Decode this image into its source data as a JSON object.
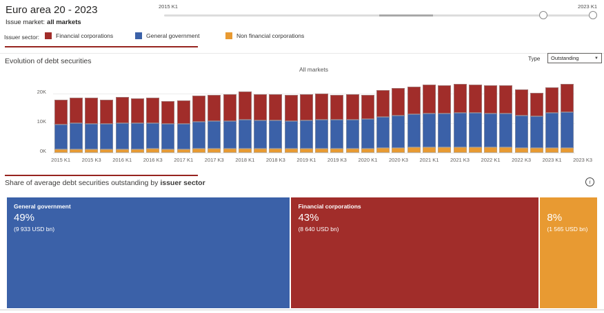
{
  "header": {
    "title": "Euro area 20 - 2023",
    "issue_market_label": "Issue market:",
    "issue_market_value": "all markets"
  },
  "slider": {
    "start_label": "2015 K1",
    "end_label": "2023 K1"
  },
  "legend": {
    "label": "Issuer sector:",
    "items": [
      {
        "label": "Financial corporations",
        "color": "#a12d2a"
      },
      {
        "label": "General government",
        "color": "#3b61a8"
      },
      {
        "label": "Non financial corporations",
        "color": "#e89a32"
      }
    ]
  },
  "sections": {
    "evolution_title": "Evolution of debt securities",
    "type_label": "Type",
    "type_value": "Outstanding",
    "share_title_prefix": "Share of average debt securities outstanding by ",
    "share_title_bold": "issuer sector"
  },
  "icons": {
    "dropdown_caret": "▼",
    "info": "i"
  },
  "colors": {
    "divider": "#96231e",
    "red": "#a12d2a",
    "blue": "#3b61a8",
    "orange": "#e89a32"
  },
  "chart_data": [
    {
      "type": "bar",
      "stacked": true,
      "title": "All markets",
      "xlabel": "",
      "ylabel": "",
      "ylim": [
        0,
        25
      ],
      "y_ticks": [
        "0K",
        "10K",
        "20K"
      ],
      "grid": true,
      "x": [
        "2015 K1",
        "2015 K2",
        "2015 K3",
        "2015 K4",
        "2016 K1",
        "2016 K2",
        "2016 K3",
        "2016 K4",
        "2017 K1",
        "2017 K2",
        "2017 K3",
        "2017 K4",
        "2018 K1",
        "2018 K2",
        "2018 K3",
        "2018 K4",
        "2019 K1",
        "2019 K2",
        "2019 K3",
        "2019 K4",
        "2020 K1",
        "2020 K2",
        "2020 K3",
        "2020 K4",
        "2021 K1",
        "2021 K2",
        "2021 K3",
        "2021 K4",
        "2022 K1",
        "2022 K2",
        "2022 K3",
        "2022 K4",
        "2023 K1",
        "2023 K2"
      ],
      "x_tick_labels": [
        "2015 K1",
        "2015 K3",
        "2016 K1",
        "2016 K3",
        "2017 K1",
        "2017 K3",
        "2018 K1",
        "2018 K3",
        "2019 K1",
        "2019 K3",
        "2020 K1",
        "2020 K3",
        "2021 K1",
        "2021 K3",
        "2022 K1",
        "2022 K3",
        "2023 K1",
        "2023 K3"
      ],
      "series": [
        {
          "name": "Non financial corporations",
          "color": "#e89a32",
          "values": [
            1.2,
            1.2,
            1.2,
            1.2,
            1.2,
            1.2,
            1.3,
            1.2,
            1.2,
            1.3,
            1.4,
            1.4,
            1.4,
            1.4,
            1.4,
            1.3,
            1.4,
            1.5,
            1.5,
            1.5,
            1.5,
            1.7,
            1.7,
            1.8,
            1.8,
            1.8,
            1.8,
            1.8,
            1.8,
            1.8,
            1.6,
            1.6,
            1.6,
            1.7
          ]
        },
        {
          "name": "General government",
          "color": "#3b61a8",
          "values": [
            8.4,
            8.7,
            8.6,
            8.5,
            8.8,
            8.8,
            8.8,
            8.5,
            8.6,
            9.2,
            9.2,
            9.3,
            9.7,
            9.5,
            9.5,
            9.5,
            9.5,
            9.6,
            9.6,
            9.7,
            9.8,
            10.5,
            10.8,
            11.2,
            11.5,
            11.5,
            11.7,
            11.6,
            11.5,
            11.4,
            10.9,
            10.8,
            11.8,
            12.0
          ]
        },
        {
          "name": "Financial corporations",
          "color": "#a12d2a",
          "values": [
            8.4,
            8.8,
            8.7,
            8.2,
            8.8,
            8.4,
            8.5,
            7.8,
            7.9,
            8.8,
            8.9,
            9.0,
            9.5,
            8.9,
            8.9,
            8.8,
            8.8,
            8.8,
            8.5,
            8.6,
            8.2,
            9.0,
            9.4,
            9.4,
            9.7,
            9.5,
            9.8,
            9.7,
            9.6,
            9.6,
            8.8,
            7.8,
            8.8,
            9.5
          ]
        }
      ]
    },
    {
      "type": "bar",
      "subtype": "100%-share",
      "title": "Share of average debt securities outstanding by issuer sector",
      "segments": [
        {
          "name": "General government",
          "pct": "49%",
          "value_label": "(9 933 USD bn)",
          "share": 49.3,
          "color": "#3b61a8"
        },
        {
          "name": "Financial corporations",
          "pct": "43%",
          "value_label": "(8 640 USD bn)",
          "share": 42.8,
          "color": "#a12d2a"
        },
        {
          "name": "",
          "pct": "8%",
          "value_label": "(1 565 USD bn)",
          "share": 7.9,
          "color": "#e89a32"
        }
      ]
    }
  ]
}
